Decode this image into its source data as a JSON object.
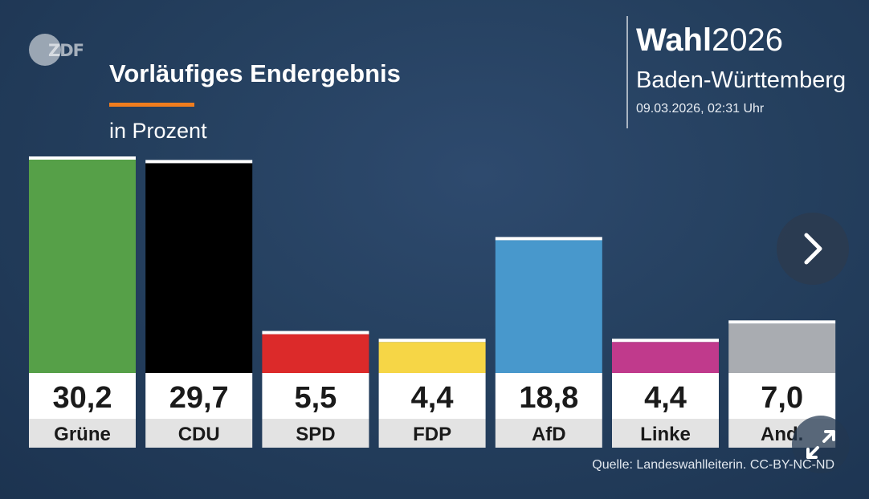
{
  "header": {
    "logo_text": "ZDF",
    "title": "Vorläufiges Endergebnis",
    "subtitle": "in Prozent",
    "brand_bold": "Wahl",
    "brand_year": "2026",
    "region": "Baden-Württemberg",
    "datetime": "09.03.2026, 02:31 Uhr",
    "accent_color": "#f07d1e"
  },
  "chart_data": {
    "type": "bar",
    "title": "Vorläufiges Endergebnis",
    "subtitle": "in Prozent",
    "categories": [
      "Grüne",
      "CDU",
      "SPD",
      "FDP",
      "AfD",
      "Linke",
      "And."
    ],
    "value_labels": [
      "30,2",
      "29,7",
      "5,5",
      "4,4",
      "18,8",
      "4,4",
      "7,0"
    ],
    "values": [
      30.2,
      29.7,
      5.5,
      4.4,
      18.8,
      4.4,
      7.0
    ],
    "colors": [
      "#56a048",
      "#000000",
      "#dc2a2a",
      "#f6d646",
      "#4898cc",
      "#c03a8c",
      "#a9acb1"
    ],
    "ylim": [
      0,
      30.2
    ],
    "grid": false,
    "legend": "none"
  },
  "controls": {
    "next_icon": "chevron-right-icon",
    "expand_icon": "expand-icon"
  },
  "footer": {
    "source": "Quelle: Landeswahlleiterin. CC-BY-NC-ND"
  }
}
